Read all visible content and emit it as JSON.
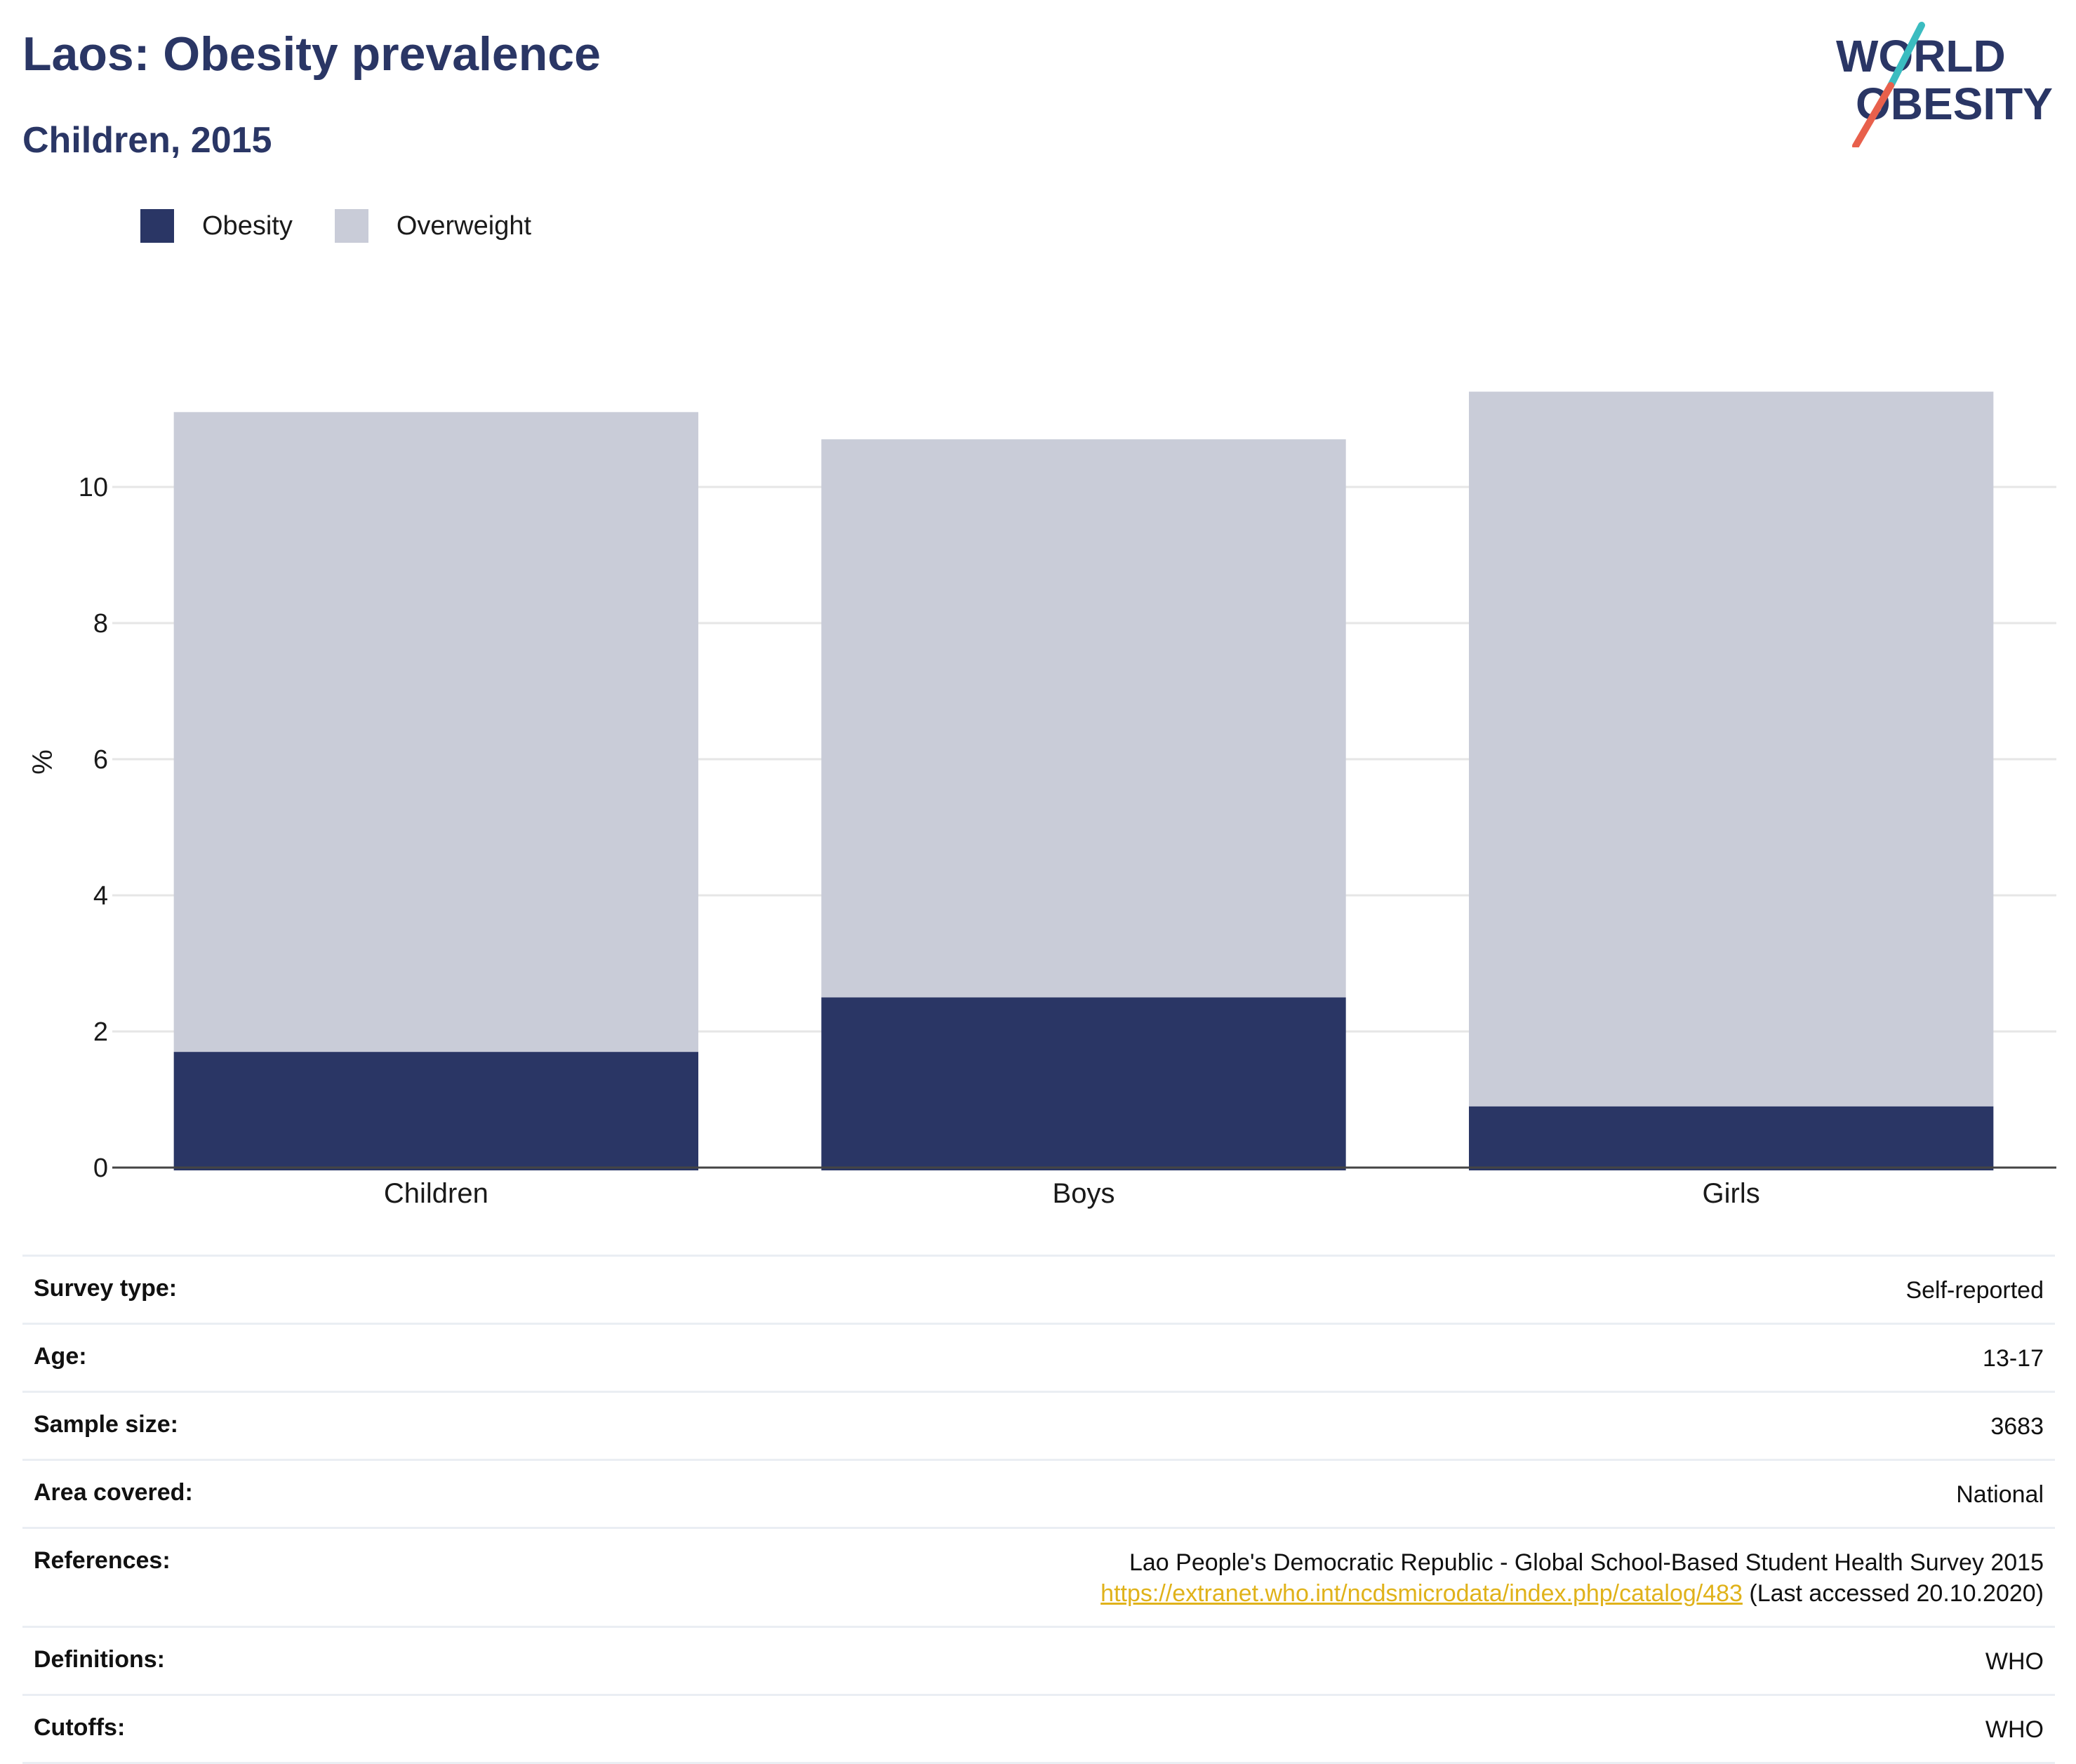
{
  "header": {
    "title": "Laos: Obesity prevalence",
    "subtitle": "Children, 2015"
  },
  "logo": {
    "line1": "WORLD",
    "line2": "OBESITY",
    "colors": {
      "text": "#2a3665",
      "accent_teal": "#3bbcc0",
      "accent_red": "#e8604c"
    }
  },
  "legend": [
    {
      "label": "Obesity",
      "color": "#2a3665"
    },
    {
      "label": "Overweight",
      "color": "#c9ccd8"
    }
  ],
  "chart_data": {
    "type": "bar",
    "stacked": true,
    "categories": [
      "Children",
      "Boys",
      "Girls"
    ],
    "series": [
      {
        "name": "Obesity",
        "values": [
          1.7,
          2.5,
          0.9
        ],
        "color": "#2a3665"
      },
      {
        "name": "Overweight",
        "values": [
          9.4,
          8.2,
          10.5
        ],
        "color": "#c9ccd8"
      }
    ],
    "title": "Laos: Obesity prevalence",
    "subtitle": "Children, 2015",
    "xlabel": "",
    "ylabel": "%",
    "ylim": [
      0,
      12
    ],
    "yticks": [
      0,
      2,
      4,
      6,
      8,
      10
    ],
    "grid": true,
    "legend_position": "top-left"
  },
  "details": {
    "survey_type": {
      "label": "Survey type:",
      "value": "Self-reported"
    },
    "age": {
      "label": "Age:",
      "value": "13-17"
    },
    "sample_size": {
      "label": "Sample size:",
      "value": "3683"
    },
    "area_covered": {
      "label": "Area covered:",
      "value": "National"
    },
    "references": {
      "label": "References:",
      "value": "Lao People's Democratic Republic - Global School-Based Student Health Survey 2015",
      "link": "https://extranet.who.int/ncdsmicrodata/index.php/catalog/483",
      "accessed": "(Last accessed 20.10.2020)"
    },
    "definitions": {
      "label": "Definitions:",
      "value": "WHO"
    },
    "cutoffs": {
      "label": "Cutoffs:",
      "value": "WHO"
    }
  }
}
